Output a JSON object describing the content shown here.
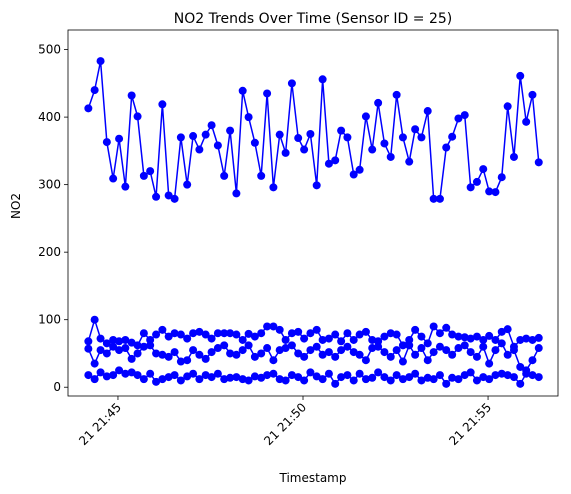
{
  "chart_data": {
    "type": "line",
    "title": "NO2 Trends Over Time (Sensor ID = 25)",
    "x_label": "Timestamp",
    "y_label": "NO2",
    "x": [
      44.2,
      44.37,
      44.53,
      44.7,
      44.87,
      45.03,
      45.2,
      45.37,
      45.53,
      45.7,
      45.87,
      46.03,
      46.2,
      46.37,
      46.53,
      46.7,
      46.87,
      47.03,
      47.2,
      47.37,
      47.53,
      47.7,
      47.87,
      48.03,
      48.2,
      48.37,
      48.53,
      48.7,
      48.87,
      49.03,
      49.2,
      49.37,
      49.53,
      49.7,
      49.87,
      50.03,
      50.2,
      50.37,
      50.53,
      50.7,
      50.87,
      51.03,
      51.2,
      51.37,
      51.53,
      51.7,
      51.87,
      52.03,
      52.2,
      52.37,
      52.53,
      52.7,
      52.87,
      53.03,
      53.2,
      53.37,
      53.53,
      53.7,
      53.87,
      54.03,
      54.2,
      54.37,
      54.53,
      54.7,
      54.87,
      55.03,
      55.2,
      55.37,
      55.53,
      55.7,
      55.87,
      56.03,
      56.2,
      56.37
    ],
    "series": [
      {
        "color": "#0000ff",
        "values": [
          413,
          440,
          483,
          363,
          309,
          368,
          297,
          432,
          401,
          313,
          320,
          282,
          419,
          284,
          279,
          370,
          300,
          372,
          352,
          374,
          388,
          358,
          313,
          380,
          287,
          439,
          400,
          362,
          313,
          435,
          296,
          374,
          347,
          450,
          369,
          352,
          375,
          299,
          456,
          331,
          336,
          380,
          370,
          315,
          322,
          401,
          352,
          421,
          361,
          341,
          433,
          370,
          334,
          382,
          370,
          409,
          279,
          279,
          355,
          371,
          398,
          403,
          296,
          304,
          323,
          290,
          289,
          311,
          416,
          341,
          461,
          393,
          433,
          333
        ]
      },
      {
        "color": "#0000ff",
        "values": [
          68,
          100,
          72,
          65,
          70,
          68,
          70,
          66,
          62,
          80,
          70,
          78,
          85,
          75,
          80,
          78,
          72,
          80,
          82,
          78,
          72,
          80,
          80,
          80,
          78,
          70,
          79,
          75,
          80,
          90,
          90,
          85,
          70,
          80,
          82,
          72,
          80,
          85,
          70,
          72,
          78,
          68,
          80,
          70,
          78,
          82,
          70,
          68,
          75,
          80,
          78,
          62,
          70,
          85,
          75,
          65,
          90,
          80,
          88,
          78,
          75,
          74,
          72,
          75,
          70,
          76,
          70,
          82,
          86,
          60,
          70,
          72,
          70,
          73
        ]
      },
      {
        "color": "#0000ff",
        "values": [
          57,
          35,
          55,
          50,
          60,
          55,
          58,
          42,
          50,
          60,
          62,
          50,
          48,
          45,
          52,
          38,
          40,
          55,
          48,
          42,
          52,
          58,
          62,
          50,
          48,
          55,
          62,
          45,
          50,
          58,
          40,
          55,
          58,
          62,
          50,
          45,
          55,
          60,
          48,
          52,
          45,
          55,
          60,
          52,
          48,
          40,
          58,
          60,
          52,
          45,
          55,
          38,
          62,
          48,
          58,
          40,
          52,
          60,
          55,
          48,
          58,
          62,
          52,
          45,
          60,
          35,
          55,
          65,
          48,
          55,
          30,
          25,
          40,
          58
        ]
      },
      {
        "color": "#0000ff",
        "values": [
          18,
          12,
          22,
          16,
          18,
          25,
          20,
          22,
          18,
          12,
          20,
          8,
          12,
          15,
          18,
          10,
          16,
          20,
          12,
          18,
          15,
          20,
          12,
          14,
          15,
          12,
          10,
          16,
          14,
          18,
          20,
          12,
          10,
          18,
          15,
          10,
          22,
          16,
          12,
          20,
          5,
          15,
          18,
          10,
          20,
          12,
          14,
          22,
          15,
          10,
          18,
          12,
          15,
          20,
          10,
          14,
          12,
          18,
          5,
          14,
          12,
          18,
          22,
          10,
          15,
          12,
          18,
          20,
          18,
          15,
          5,
          20,
          18,
          15
        ]
      }
    ],
    "xlim": [
      43.65,
      56.89
    ],
    "xticks": [
      {
        "value": 45,
        "label": "21 21:45"
      },
      {
        "value": 50,
        "label": "21 21:50"
      },
      {
        "value": 55,
        "label": "21 21:55"
      }
    ],
    "ylim": [
      -13,
      529
    ],
    "yticks": [
      0,
      100,
      200,
      300,
      400,
      500
    ],
    "grid": false
  }
}
